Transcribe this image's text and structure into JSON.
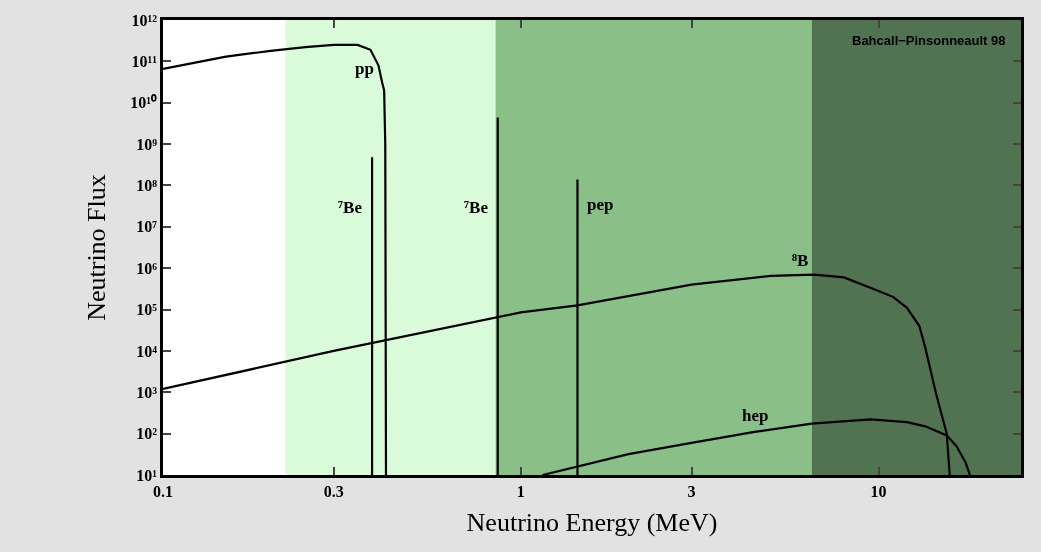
{
  "chart_data": {
    "type": "line",
    "xlabel": "Neutrino Energy (MeV)",
    "ylabel": "Neutrino Flux",
    "log": "xy",
    "grid": false,
    "marker": "none",
    "line_style": "solid",
    "xlim": [
      0.1,
      25
    ],
    "xticks": [
      0.1,
      0.3,
      1,
      3,
      10
    ],
    "ylim": [
      10,
      1000000000000
    ],
    "yticks": [
      {
        "value": 10,
        "label": "10¹"
      },
      {
        "value": 100,
        "label": "10²"
      },
      {
        "value": 1000,
        "label": "10³"
      },
      {
        "value": 10000,
        "label": "10⁴"
      },
      {
        "value": 100000,
        "label": "10⁵"
      },
      {
        "value": 1000000,
        "label": "10⁶"
      },
      {
        "value": 10000000,
        "label": "10⁷"
      },
      {
        "value": 100000000,
        "label": "10⁸"
      },
      {
        "value": 1000000000,
        "label": "10⁹"
      },
      {
        "value": 10000000000,
        "label": "10¹⁰"
      },
      {
        "value": 100000000000,
        "label": "10¹¹"
      },
      {
        "value": 1000000000000,
        "label": "10¹²"
      }
    ],
    "series": [
      {
        "color": "#000000",
        "x": [
          0.1,
          0.15,
          0.2,
          0.25,
          0.3,
          0.35,
          0.38,
          0.4,
          0.41,
          0.415,
          0.418,
          0.42
        ],
        "values": [
          66000000000,
          130000000000,
          180000000000,
          220000000000,
          250000000000,
          250000000000,
          190000000000,
          80000000000,
          30000000000,
          20000000000,
          1000000000,
          10
        ]
      },
      {
        "color": "#000000",
        "x": [
          0.384,
          0.384
        ],
        "values": [
          10,
          480000000
        ]
      },
      {
        "color": "#000000",
        "x": [
          0.862,
          0.862
        ],
        "values": [
          10,
          4400000000
        ]
      },
      {
        "color": "#000000",
        "x": [
          1.44,
          1.44
        ],
        "values": [
          10,
          140000000
        ]
      },
      {
        "color": "#000000",
        "x": [
          0.1,
          0.3,
          1,
          1.44,
          3,
          5,
          6.6,
          8,
          10,
          11,
          12,
          13,
          13.5,
          14.5,
          15.5,
          15.8
        ],
        "values": [
          1200,
          10000,
          85000,
          126000,
          400000,
          650000,
          700000,
          600000,
          280000,
          200000,
          110000,
          40000,
          12000,
          870,
          100,
          10
        ]
      },
      {
        "color": "#000000",
        "x": [
          1.15,
          2,
          3,
          4.5,
          6.5,
          9.5,
          12,
          13.5,
          15.5,
          16.5,
          17.5,
          18
        ],
        "values": [
          10,
          32,
          60,
          110,
          175,
          220,
          190,
          150,
          90,
          50,
          20,
          10
        ]
      }
    ],
    "bands": [
      {
        "axis": "x",
        "from": 0.22,
        "to": 0.85,
        "color": "#d9fbd9"
      },
      {
        "axis": "x",
        "from": 0.85,
        "to": 6.5,
        "color": "#8bbf88"
      },
      {
        "axis": "x",
        "from": 6.5,
        "to": 25,
        "color": "#517352"
      }
    ],
    "annotations": [
      {
        "text": "pp",
        "x": 0.41,
        "y": 30000000000
      },
      {
        "text": "⁷Be",
        "x": 0.384,
        "y": 30000000
      },
      {
        "text": "⁷Be",
        "x": 0.862,
        "y": 30000000
      },
      {
        "text": "pep",
        "x": 1.44,
        "y": 35000000
      },
      {
        "text": "⁸B",
        "x": 6.6,
        "y": 700000
      },
      {
        "text": "hep",
        "x": 4.5,
        "y": 110
      },
      "Bahcall−Pinsonneault 98"
    ]
  }
}
